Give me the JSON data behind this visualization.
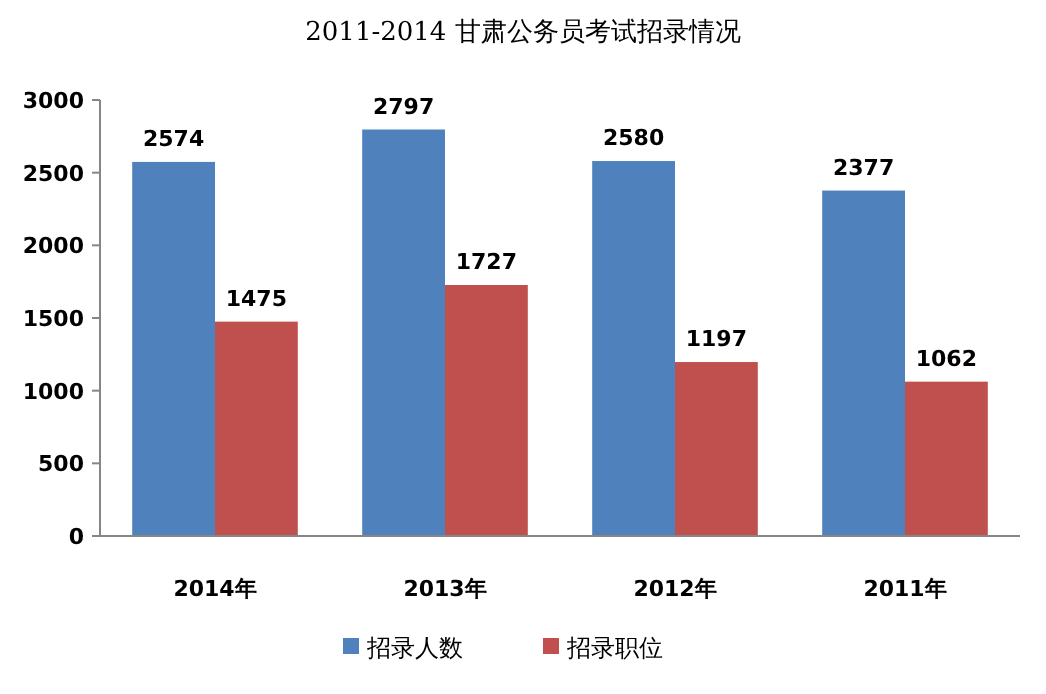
{
  "chart_data": {
    "type": "bar",
    "title": "2011-2014 甘肃公务员考试招录情况",
    "categories": [
      "2014年",
      "2013年",
      "2012年",
      "2011年"
    ],
    "series": [
      {
        "name": "招录人数",
        "color": "#4f81bd",
        "values": [
          2574,
          2797,
          2580,
          2377
        ]
      },
      {
        "name": "招录职位",
        "color": "#c0504d",
        "values": [
          1475,
          1727,
          1197,
          1062
        ]
      }
    ],
    "ylim": [
      0,
      3000
    ],
    "yticks": [
      0,
      500,
      1000,
      1500,
      2000,
      2500,
      3000
    ],
    "data_labels": true,
    "legend": "bottom",
    "grid": false
  }
}
